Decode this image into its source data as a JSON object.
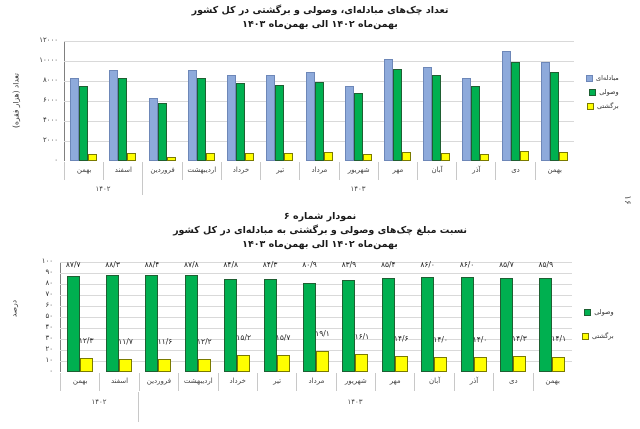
{
  "page_number": "۱۶",
  "chart1": {
    "title_line1": "تعداد چک‌های مبادله‌ای، وصولی و برگشتی در کل کشور",
    "title_line2": "بهمن‌ماه ۱۴۰۲ الی بهمن‌ماه ۱۴۰۳",
    "ylabel": "تعداد (هزار فقره)",
    "yticks": [
      "۱۲۰۰۰",
      "۱۰۰۰۰",
      "۸۰۰۰",
      "۶۰۰۰",
      "۴۰۰۰",
      "۲۰۰۰",
      "۰"
    ],
    "legend": [
      "مبادله‌ای",
      "وصولی",
      "برگشتی"
    ],
    "categories": [
      "بهمن",
      "اسفند",
      "فروردین",
      "اردیبهشت",
      "خرداد",
      "تیر",
      "مرداد",
      "شهریور",
      "مهر",
      "آبان",
      "آذر",
      "دی",
      "بهمن"
    ],
    "years": [
      "۱۴۰۲",
      "۱۴۰۳"
    ]
  },
  "chart2": {
    "title_line0": "نمودار شماره ۶",
    "title_line1": "نسبت مبلغ چک‌های وصولی و برگشتی به مبادله‌ای در کل کشور",
    "title_line2": "بهمن‌ماه ۱۴۰۲ الی بهمن‌ماه ۱۴۰۳",
    "ylabel": "درصد",
    "yticks": [
      "۱۰۰",
      "۹۰",
      "۸۰",
      "۷۰",
      "۶۰",
      "۵۰",
      "۴۰",
      "۳۰",
      "۲۰",
      "۱۰",
      "۰"
    ],
    "legend": [
      "وصولی",
      "برگشتی"
    ],
    "categories": [
      "بهمن",
      "اسفند",
      "فروردین",
      "اردیبهشت",
      "خرداد",
      "تیر",
      "مرداد",
      "شهریور",
      "مهر",
      "آبان",
      "آذر",
      "دی",
      "بهمن"
    ],
    "years": [
      "۱۴۰۲",
      "۱۴۰۳"
    ],
    "green_labels": [
      "۸۷/۷",
      "۸۸/۳",
      "۸۸/۴",
      "۸۷/۸",
      "۸۴/۸",
      "۸۴/۳",
      "۸۰/۹",
      "۸۳/۹",
      "۸۵/۴",
      "۸۶/۰",
      "۸۶/۰",
      "۸۵/۷",
      "۸۵/۹"
    ],
    "yellow_labels": [
      "۱۲/۳",
      "۱۱/۷",
      "۱۱/۶",
      "۱۲/۲",
      "۱۵/۲",
      "۱۵/۷",
      "۱۹/۱",
      "۱۶/۱",
      "۱۴/۶",
      "۱۴/۰",
      "۱۴/۰",
      "۱۴/۳",
      "۱۴/۱"
    ]
  },
  "colors": {
    "exchanged": "#8eaadb",
    "collected": "#00b050",
    "returned": "#ffff00"
  },
  "chart_data": [
    {
      "type": "bar",
      "title": "تعداد چک‌های مبادله‌ای، وصولی و برگشتی در کل کشور - بهمن‌ماه ۱۴۰۲ الی بهمن‌ماه ۱۴۰۳",
      "xlabel": "",
      "ylabel": "تعداد (هزار فقره)",
      "ylim": [
        0,
        12000
      ],
      "grid": true,
      "legend_position": "right",
      "categories": [
        "بهمن ۱۴۰۲",
        "اسفند ۱۴۰۲",
        "فروردین ۱۴۰۳",
        "اردیبهشت ۱۴۰۳",
        "خرداد ۱۴۰۳",
        "تیر ۱۴۰۳",
        "مرداد ۱۴۰۳",
        "شهریور ۱۴۰۳",
        "مهر ۱۴۰۳",
        "آبان ۱۴۰۳",
        "آذر ۱۴۰۳",
        "دی ۱۴۰۳",
        "بهمن ۱۴۰۳"
      ],
      "series": [
        {
          "name": "مبادله‌ای",
          "values": [
            8300,
            9100,
            6300,
            9100,
            8600,
            8600,
            8900,
            7500,
            10200,
            9400,
            8300,
            11000,
            9900
          ]
        },
        {
          "name": "وصولی",
          "values": [
            7500,
            8300,
            5800,
            8300,
            7800,
            7650,
            7950,
            6800,
            9200,
            8600,
            7500,
            9900,
            8900
          ]
        },
        {
          "name": "برگشتی",
          "values": [
            750,
            800,
            450,
            800,
            850,
            850,
            950,
            700,
            950,
            800,
            700,
            1050,
            950
          ]
        }
      ]
    },
    {
      "type": "bar",
      "title": "نمودار شماره ۶ - نسبت مبلغ چک‌های وصولی و برگشتی به مبادله‌ای در کل کشور - بهمن‌ماه ۱۴۰۲ الی بهمن‌ماه ۱۴۰۳",
      "xlabel": "",
      "ylabel": "درصد",
      "ylim": [
        0,
        100
      ],
      "grid": true,
      "legend_position": "right",
      "categories": [
        "بهمن ۱۴۰۲",
        "اسفند ۱۴۰۲",
        "فروردین ۱۴۰۳",
        "اردیبهشت ۱۴۰۳",
        "خرداد ۱۴۰۳",
        "تیر ۱۴۰۳",
        "مرداد ۱۴۰۳",
        "شهریور ۱۴۰۳",
        "مهر ۱۴۰۳",
        "آبان ۱۴۰۳",
        "آذر ۱۴۰۳",
        "دی ۱۴۰۳",
        "بهمن ۱۴۰۳"
      ],
      "series": [
        {
          "name": "وصولی",
          "values": [
            87.7,
            88.3,
            88.4,
            87.8,
            84.8,
            84.3,
            80.9,
            83.9,
            85.4,
            86.0,
            86.0,
            85.7,
            85.9
          ]
        },
        {
          "name": "برگشتی",
          "values": [
            12.3,
            11.7,
            11.6,
            12.2,
            15.2,
            15.7,
            19.1,
            16.1,
            14.6,
            14.0,
            14.0,
            14.3,
            14.1
          ]
        }
      ]
    }
  ]
}
